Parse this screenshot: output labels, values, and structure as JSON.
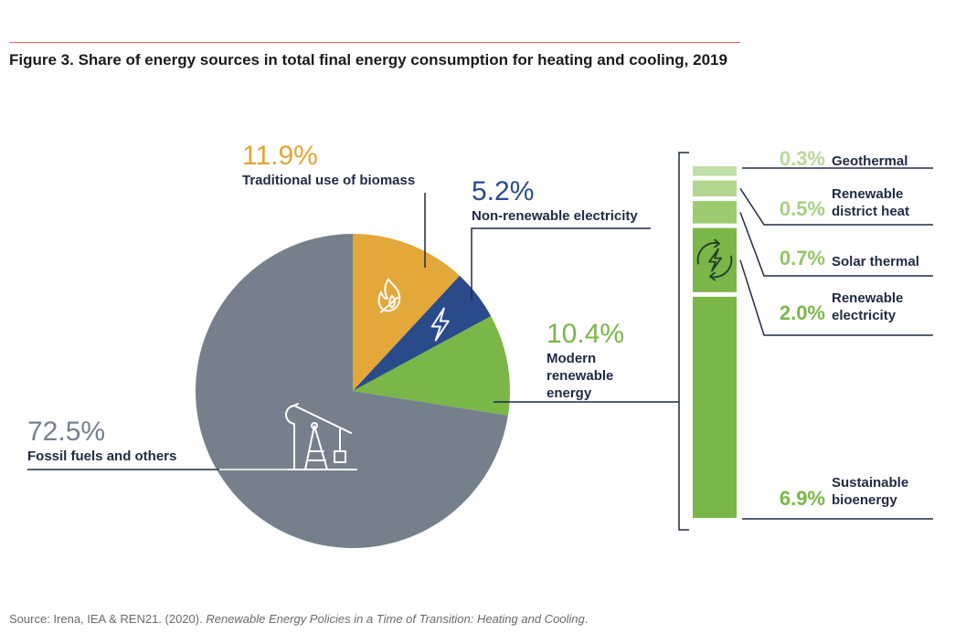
{
  "figure": {
    "title": "Figure 3. Share of energy sources in total final energy consumption for heating and cooling, 2019",
    "source_prefix": "Source: Irena, IEA & REN21. (2020). ",
    "source_title": "Renewable Energy Policies in a Time of Transition: Heating and Cooling",
    "source_suffix": "."
  },
  "icons": [
    "flame-icon",
    "lightning-icon",
    "oil-pump-icon",
    "recycle-lightning-icon"
  ],
  "chart_data": [
    {
      "type": "pie",
      "start_angle": "12 o'clock, clockwise",
      "slices": [
        {
          "name": "Traditional use of biomass",
          "value": 11.9,
          "label": "11.9%",
          "color": "#e4a73a",
          "text_color": "#e0a533",
          "icon": "flame-icon"
        },
        {
          "name": "Non-renewable electricity",
          "value": 5.2,
          "label": "5.2%",
          "color": "#2a4a8a",
          "text_color": "#2a4a8a",
          "icon": "lightning-icon"
        },
        {
          "name": "Modern renewable energy",
          "name_lines": [
            "Modern",
            "renewable",
            "energy"
          ],
          "value": 10.4,
          "label": "10.4%",
          "color": "#7ab648",
          "text_color": "#7ab648"
        },
        {
          "name": "Fossil fuels and others",
          "value": 72.5,
          "label": "72.5%",
          "color": "#76808d",
          "text_color": "#76808d",
          "icon": "oil-pump-icon"
        }
      ]
    },
    {
      "type": "bar",
      "stacked": true,
      "orientation": "vertical",
      "breakdown_of": "Modern renewable energy",
      "total": 10.4,
      "segments": [
        {
          "name": "Geothermal",
          "name_lines": [
            "Geothermal"
          ],
          "value": 0.3,
          "label": "0.3%",
          "color": "#c3dea8",
          "text_color": "#b9d89b"
        },
        {
          "name": "Renewable district heat",
          "name_lines": [
            "Renewable",
            "district heat"
          ],
          "value": 0.5,
          "label": "0.5%",
          "color": "#b2d68f",
          "text_color": "#a6cf80"
        },
        {
          "name": "Solar thermal",
          "name_lines": [
            "Solar thermal"
          ],
          "value": 0.7,
          "label": "0.7%",
          "color": "#9ccb70",
          "text_color": "#94c565"
        },
        {
          "name": "Renewable electricity",
          "name_lines": [
            "Renewable",
            "electricity"
          ],
          "value": 2.0,
          "label": "2.0%",
          "color": "#7ab648",
          "text_color": "#7ab648",
          "icon": "recycle-lightning-icon"
        },
        {
          "name": "Sustainable bioenergy",
          "name_lines": [
            "Sustainable",
            "bioenergy"
          ],
          "value": 6.9,
          "label": "6.9%",
          "color": "#7ab648",
          "text_color": "#7ab648"
        }
      ]
    }
  ]
}
